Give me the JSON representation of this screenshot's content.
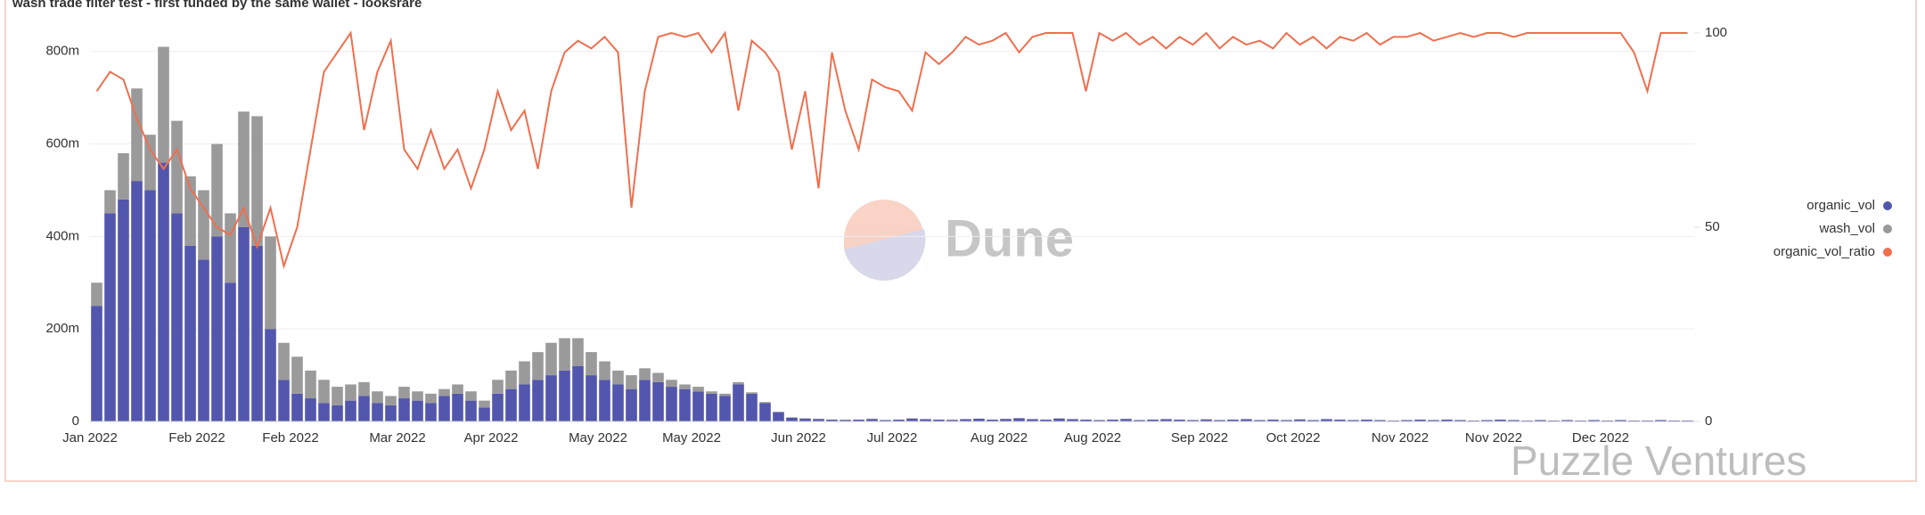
{
  "chart_data": {
    "type": "bar",
    "stacked": true,
    "title": "wash trade filter test - first funded by the same wallet - looksrare",
    "annotations": [
      "Dune",
      "Puzzle Ventures"
    ],
    "categories": [
      "Jan 2022",
      null,
      null,
      null,
      null,
      null,
      null,
      null,
      "Feb 2022",
      null,
      null,
      null,
      null,
      null,
      null,
      "Feb 2022",
      null,
      null,
      null,
      null,
      null,
      null,
      null,
      "Mar 2022",
      null,
      null,
      null,
      null,
      null,
      null,
      "Apr 2022",
      null,
      null,
      null,
      null,
      null,
      null,
      null,
      "May 2022",
      null,
      null,
      null,
      null,
      null,
      null,
      "May 2022",
      null,
      null,
      null,
      null,
      null,
      null,
      null,
      "Jun 2022",
      null,
      null,
      null,
      null,
      null,
      null,
      "Jul 2022",
      null,
      null,
      null,
      null,
      null,
      null,
      null,
      "Aug 2022",
      null,
      null,
      null,
      null,
      null,
      null,
      "Aug 2022",
      null,
      null,
      null,
      null,
      null,
      null,
      null,
      "Sep 2022",
      null,
      null,
      null,
      null,
      null,
      null,
      "Oct 2022",
      null,
      null,
      null,
      null,
      null,
      null,
      null,
      "Nov 2022",
      null,
      null,
      null,
      null,
      null,
      null,
      "Nov 2022",
      null,
      null,
      null,
      null,
      null,
      null,
      null,
      "Dec 2022",
      null,
      null,
      null,
      null,
      null,
      null
    ],
    "series": [
      {
        "name": "organic_vol",
        "color": "#5356ad",
        "axis": "y",
        "type": "bar",
        "values": [
          250,
          450,
          480,
          520,
          500,
          560,
          450,
          380,
          350,
          400,
          300,
          420,
          380,
          200,
          90,
          60,
          50,
          40,
          35,
          45,
          55,
          40,
          35,
          50,
          45,
          40,
          55,
          60,
          45,
          30,
          60,
          70,
          80,
          90,
          100,
          110,
          120,
          100,
          90,
          80,
          70,
          90,
          85,
          75,
          70,
          65,
          60,
          55,
          80,
          60,
          40,
          20,
          8,
          6,
          5,
          4,
          3,
          4,
          5,
          3,
          4,
          6,
          5,
          4,
          3,
          5,
          6,
          4,
          5,
          7,
          5,
          4,
          6,
          5,
          4,
          3,
          4,
          5,
          3,
          4,
          5,
          4,
          3,
          4,
          3,
          4,
          5,
          3,
          4,
          3,
          4,
          3,
          5,
          4,
          3,
          4,
          3,
          2,
          3,
          4,
          3,
          4,
          3,
          2,
          3,
          4,
          3,
          2,
          3,
          2,
          3,
          2,
          3,
          2,
          3,
          2,
          2,
          3,
          2,
          2
        ]
      },
      {
        "name": "wash_vol",
        "color": "#9a9a9a",
        "axis": "y",
        "type": "bar",
        "values": [
          50,
          50,
          100,
          200,
          120,
          250,
          200,
          150,
          150,
          200,
          150,
          250,
          280,
          200,
          80,
          80,
          60,
          50,
          40,
          35,
          30,
          25,
          20,
          25,
          20,
          20,
          15,
          20,
          20,
          15,
          30,
          40,
          50,
          60,
          70,
          70,
          60,
          50,
          40,
          30,
          30,
          25,
          20,
          15,
          10,
          10,
          5,
          5,
          5,
          3,
          2,
          1,
          1,
          1,
          1,
          0,
          1,
          0,
          1,
          0,
          0,
          1,
          0,
          0,
          1,
          0,
          0,
          0,
          1,
          0,
          0,
          0,
          1,
          0,
          0,
          0,
          0,
          1,
          0,
          0,
          0,
          0,
          0,
          1,
          0,
          0,
          0,
          0,
          0,
          0,
          1,
          0,
          0,
          0,
          0,
          0,
          0,
          0,
          0,
          0,
          0,
          0,
          0,
          0,
          0,
          0,
          0,
          0,
          0,
          0,
          0,
          0,
          0,
          0,
          0,
          0,
          0,
          0,
          0,
          0
        ]
      },
      {
        "name": "organic_vol_ratio",
        "color": "#ef6f4f",
        "axis": "y2",
        "type": "line",
        "values": [
          85,
          90,
          88,
          78,
          70,
          65,
          70,
          60,
          55,
          50,
          48,
          55,
          45,
          55,
          40,
          50,
          70,
          90,
          95,
          100,
          75,
          90,
          98,
          70,
          65,
          75,
          65,
          70,
          60,
          70,
          85,
          75,
          80,
          65,
          85,
          95,
          98,
          96,
          99,
          95,
          55,
          85,
          99,
          100,
          99,
          100,
          95,
          100,
          80,
          98,
          95,
          90,
          70,
          85,
          60,
          95,
          80,
          70,
          88,
          86,
          85,
          80,
          95,
          92,
          95,
          99,
          97,
          98,
          100,
          95,
          99,
          100,
          100,
          100,
          85,
          100,
          98,
          100,
          97,
          99,
          96,
          99,
          97,
          100,
          96,
          99,
          97,
          98,
          96,
          100,
          97,
          99,
          96,
          99,
          98,
          100,
          97,
          99,
          99,
          100,
          98,
          99,
          100,
          99,
          100,
          100,
          99,
          100,
          100,
          100,
          100,
          100,
          100,
          100,
          100,
          95,
          85,
          100,
          100,
          100
        ]
      }
    ],
    "ylim": [
      0,
      840
    ],
    "yticks": [
      {
        "value": 0,
        "label": "0"
      },
      {
        "value": 200,
        "label": "200m"
      },
      {
        "value": 400,
        "label": "400m"
      },
      {
        "value": 600,
        "label": "600m"
      },
      {
        "value": 800,
        "label": "800m"
      }
    ],
    "y2lim": [
      0,
      100
    ],
    "y2ticks": [
      0,
      50,
      100
    ],
    "grid": true,
    "legend": "right"
  }
}
